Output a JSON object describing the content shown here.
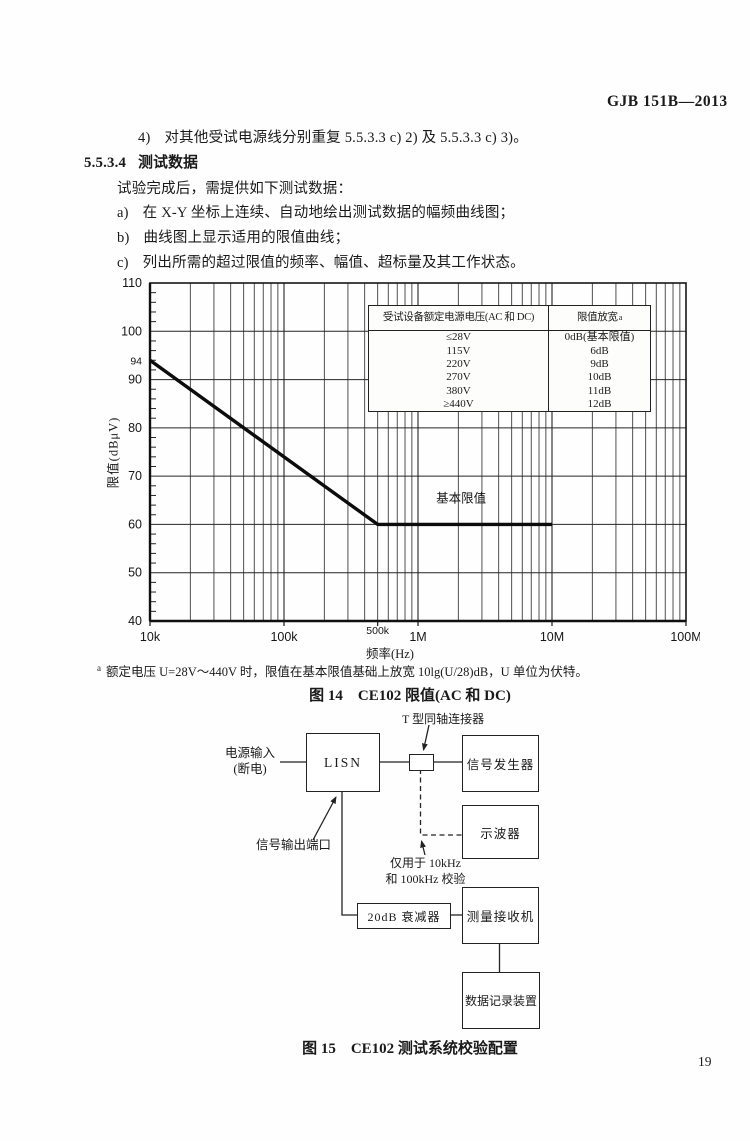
{
  "header": {
    "doc_number": "GJB 151B—2013"
  },
  "body": {
    "item4": {
      "marker": "4)",
      "text": "对其他受试电源线分别重复 5.5.3.3 c) 2) 及 5.5.3.3 c) 3)。"
    },
    "section": {
      "number": "5.5.3.4",
      "title": "测试数据"
    },
    "intro": "试验完成后，需提供如下测试数据：",
    "items": [
      {
        "marker": "a)",
        "text": "在 X-Y 坐标上连续、自动地绘出测试数据的幅频曲线图；"
      },
      {
        "marker": "b)",
        "text": "曲线图上显示适用的限值曲线；"
      },
      {
        "marker": "c)",
        "text": "列出所需的超过限值的频率、幅值、超标量及其工作状态。"
      }
    ]
  },
  "chart_data": {
    "type": "line",
    "title": "图 14 CE102 限值(AC 和 DC)",
    "xlabel": "频率(Hz)",
    "ylabel": "限值(dBμV)",
    "x_scale": "log",
    "xlim": [
      10000,
      100000000
    ],
    "ylim": [
      40,
      110
    ],
    "grid": true,
    "x_ticks": [
      {
        "value": 10000,
        "label": "10k"
      },
      {
        "value": 100000,
        "label": "100k"
      },
      {
        "value": 500000,
        "label": "500k",
        "small": true
      },
      {
        "value": 1000000,
        "label": "1M"
      },
      {
        "value": 10000000,
        "label": "10M"
      },
      {
        "value": 100000000,
        "label": "100M"
      }
    ],
    "y_ticks": [
      {
        "value": 110
      },
      {
        "value": 100
      },
      {
        "value": 94,
        "small": true
      },
      {
        "value": 90
      },
      {
        "value": 80
      },
      {
        "value": 70
      },
      {
        "value": 60
      },
      {
        "value": 50
      },
      {
        "value": 40
      }
    ],
    "series": [
      {
        "name": "基本限值",
        "points": [
          [
            10000,
            94
          ],
          [
            500000,
            60
          ],
          [
            10000000,
            60
          ]
        ]
      }
    ],
    "annotation": {
      "text": "基本限值",
      "x": 2100000,
      "y": 64.5
    },
    "inset_table": {
      "header_voltage": "受试设备额定电源电压(AC 和 DC)",
      "header_relax": "限值放宽",
      "header_relax_sup": "a",
      "rows": [
        [
          "≤28V",
          "0dB(基本限值)"
        ],
        [
          "115V",
          "6dB"
        ],
        [
          "220V",
          "9dB"
        ],
        [
          "270V",
          "10dB"
        ],
        [
          "380V",
          "11dB"
        ],
        [
          "≥440V",
          "12dB"
        ]
      ]
    }
  },
  "footnote": {
    "marker": "a",
    "text": "额定电压 U=28V～440V 时，限值在基本限值基础上放宽 10lg(U/28)dB，U 单位为伏特。"
  },
  "figure14": {
    "caption": "图 14　CE102 限值(AC 和 DC)"
  },
  "figure15": {
    "caption": "图 15　CE102 测试系统校验配置"
  },
  "diagram": {
    "boxes": {
      "lisn": "LISN",
      "signal_generator": "信号发生器",
      "oscilloscope": "示波器",
      "attenuator": "20dB 衰减器",
      "receiver": "测量接收机",
      "recorder": "数据记录装置"
    },
    "labels": {
      "power_input_line1": "电源输入",
      "power_input_line2": "(断电)",
      "t_connector": "T 型同轴连接器",
      "signal_output_port": "信号输出端口",
      "cal_note_line1": "仅用于 10kHz",
      "cal_note_line2": "和 100kHz 校验"
    }
  },
  "page_number": "19"
}
